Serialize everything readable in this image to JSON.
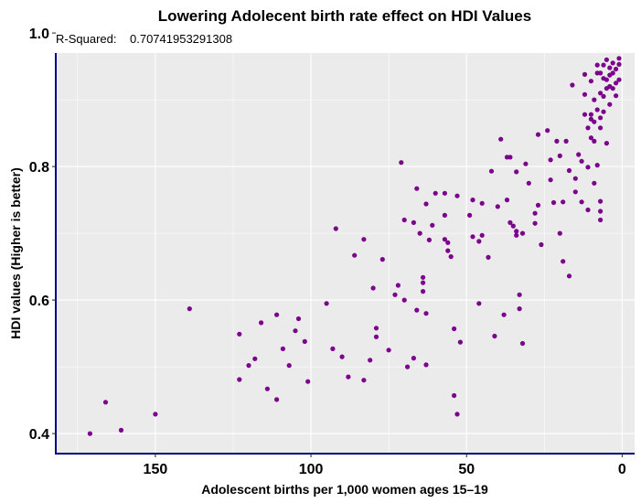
{
  "chart_data": {
    "type": "scatter",
    "title": "Lowering Adolecent birth rate effect on HDI Values",
    "subtitle_label": "R-Squared:",
    "subtitle_value": "0.70741953291308",
    "xlabel": "Adolescent births per 1,000 women ages 15–19",
    "ylabel": "HDI values (Higher is better)",
    "xlim": [
      -4,
      182
    ],
    "x_reversed": true,
    "ylim": [
      0.37,
      0.97
    ],
    "xticks": [
      150,
      100,
      50,
      0
    ],
    "xtick_labels": [
      "150",
      "100",
      "50",
      "0"
    ],
    "yticks": [
      0.4,
      0.6,
      0.8,
      1.0
    ],
    "ytick_labels": [
      "0.4",
      "0.6",
      "0.8",
      "1.0"
    ],
    "grid": true,
    "point_color": "#7b008b",
    "panel_color": "#ebebeb",
    "axis_color": "#00007f",
    "points": [
      [
        171,
        0.4
      ],
      [
        166,
        0.447
      ],
      [
        161,
        0.405
      ],
      [
        150,
        0.429
      ],
      [
        139,
        0.587
      ],
      [
        123,
        0.549
      ],
      [
        123,
        0.481
      ],
      [
        120,
        0.502
      ],
      [
        118,
        0.512
      ],
      [
        116,
        0.566
      ],
      [
        114,
        0.467
      ],
      [
        111,
        0.578
      ],
      [
        111,
        0.451
      ],
      [
        109,
        0.527
      ],
      [
        107,
        0.502
      ],
      [
        105,
        0.554
      ],
      [
        104,
        0.572
      ],
      [
        102,
        0.538
      ],
      [
        101,
        0.478
      ],
      [
        95,
        0.595
      ],
      [
        93,
        0.527
      ],
      [
        92,
        0.707
      ],
      [
        90,
        0.515
      ],
      [
        88,
        0.485
      ],
      [
        86,
        0.667
      ],
      [
        83,
        0.48
      ],
      [
        83,
        0.691
      ],
      [
        81,
        0.51
      ],
      [
        80,
        0.618
      ],
      [
        79,
        0.558
      ],
      [
        79,
        0.545
      ],
      [
        77,
        0.661
      ],
      [
        75,
        0.525
      ],
      [
        73,
        0.608
      ],
      [
        72,
        0.622
      ],
      [
        71,
        0.806
      ],
      [
        70,
        0.72
      ],
      [
        70,
        0.6
      ],
      [
        69,
        0.5
      ],
      [
        67,
        0.513
      ],
      [
        67,
        0.716
      ],
      [
        66,
        0.585
      ],
      [
        66,
        0.767
      ],
      [
        65,
        0.7
      ],
      [
        64,
        0.634
      ],
      [
        64,
        0.626
      ],
      [
        64,
        0.613
      ],
      [
        63,
        0.744
      ],
      [
        63,
        0.503
      ],
      [
        63,
        0.58
      ],
      [
        62,
        0.69
      ],
      [
        61,
        0.712
      ],
      [
        60,
        0.76
      ],
      [
        57,
        0.691
      ],
      [
        57,
        0.76
      ],
      [
        57,
        0.727
      ],
      [
        56,
        0.686
      ],
      [
        56,
        0.674
      ],
      [
        55,
        0.665
      ],
      [
        54,
        0.557
      ],
      [
        54,
        0.457
      ],
      [
        53,
        0.756
      ],
      [
        53,
        0.429
      ],
      [
        52,
        0.537
      ],
      [
        49,
        0.727
      ],
      [
        48,
        0.695
      ],
      [
        48,
        0.75
      ],
      [
        46,
        0.595
      ],
      [
        46,
        0.688
      ],
      [
        45,
        0.745
      ],
      [
        45,
        0.697
      ],
      [
        43,
        0.664
      ],
      [
        42,
        0.793
      ],
      [
        41,
        0.546
      ],
      [
        40,
        0.74
      ],
      [
        39,
        0.841
      ],
      [
        38,
        0.578
      ],
      [
        37,
        0.814
      ],
      [
        37,
        0.75
      ],
      [
        36,
        0.814
      ],
      [
        36,
        0.716
      ],
      [
        35,
        0.711
      ],
      [
        34,
        0.703
      ],
      [
        34,
        0.792
      ],
      [
        34,
        0.697
      ],
      [
        33,
        0.608
      ],
      [
        33,
        0.587
      ],
      [
        32,
        0.535
      ],
      [
        32,
        0.7
      ],
      [
        31,
        0.804
      ],
      [
        30,
        0.775
      ],
      [
        28,
        0.715
      ],
      [
        28,
        0.73
      ],
      [
        27,
        0.742
      ],
      [
        27,
        0.848
      ],
      [
        26,
        0.683
      ],
      [
        24,
        0.854
      ],
      [
        23,
        0.81
      ],
      [
        23,
        0.78
      ],
      [
        22,
        0.746
      ],
      [
        21,
        0.838
      ],
      [
        20,
        0.816
      ],
      [
        20,
        0.7
      ],
      [
        19,
        0.747
      ],
      [
        19,
        0.658
      ],
      [
        18,
        0.838
      ],
      [
        17,
        0.794
      ],
      [
        17,
        0.636
      ],
      [
        16,
        0.922
      ],
      [
        15,
        0.782
      ],
      [
        15,
        0.762
      ],
      [
        14,
        0.818
      ],
      [
        13,
        0.808
      ],
      [
        13,
        0.747
      ],
      [
        12,
        0.938
      ],
      [
        12,
        0.908
      ],
      [
        12,
        0.878
      ],
      [
        11,
        0.858
      ],
      [
        11,
        0.799
      ],
      [
        11,
        0.735
      ],
      [
        10,
        0.928
      ],
      [
        10,
        0.878
      ],
      [
        10,
        0.871
      ],
      [
        10,
        0.843
      ],
      [
        9,
        0.9
      ],
      [
        9,
        0.867
      ],
      [
        9,
        0.838
      ],
      [
        9,
        0.775
      ],
      [
        8,
        0.952
      ],
      [
        8,
        0.94
      ],
      [
        8,
        0.885
      ],
      [
        8,
        0.802
      ],
      [
        7,
        0.94
      ],
      [
        7,
        0.91
      ],
      [
        7,
        0.873
      ],
      [
        7,
        0.858
      ],
      [
        7,
        0.748
      ],
      [
        7,
        0.733
      ],
      [
        7,
        0.72
      ],
      [
        6,
        0.932
      ],
      [
        6,
        0.952
      ],
      [
        6,
        0.905
      ],
      [
        6,
        0.882
      ],
      [
        5,
        0.96
      ],
      [
        5,
        0.93
      ],
      [
        5,
        0.917
      ],
      [
        5,
        0.835
      ],
      [
        4,
        0.948
      ],
      [
        4,
        0.937
      ],
      [
        4,
        0.92
      ],
      [
        4,
        0.893
      ],
      [
        3,
        0.955
      ],
      [
        3,
        0.94
      ],
      [
        3,
        0.917
      ],
      [
        2,
        0.946
      ],
      [
        2,
        0.925
      ],
      [
        2,
        0.906
      ],
      [
        1,
        0.962
      ],
      [
        1,
        0.953
      ],
      [
        1,
        0.93
      ]
    ]
  }
}
